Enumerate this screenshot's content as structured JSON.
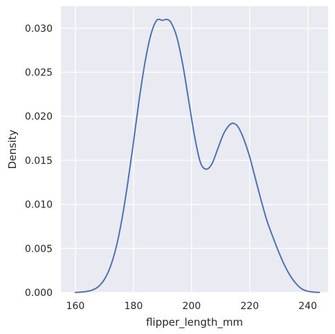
{
  "chart_data": {
    "type": "line",
    "xlabel": "flipper_length_mm",
    "ylabel": "Density",
    "xlim": [
      155,
      247
    ],
    "ylim": [
      0,
      0.0325
    ],
    "x_ticks": [
      160,
      180,
      200,
      220,
      240
    ],
    "y_ticks": [
      0.0,
      0.005,
      0.01,
      0.015,
      0.02,
      0.025,
      0.03
    ],
    "grid": true,
    "colors": {
      "background": "#EAEAF2",
      "grid": "#FFFFFF",
      "line": "#4C72B0"
    },
    "series": [
      {
        "x": [
          160,
          162,
          164,
          166,
          168,
          170,
          172,
          174,
          176,
          178,
          180,
          182,
          184,
          186,
          188,
          190,
          191.5,
          193,
          195,
          197,
          199,
          201,
          203,
          205,
          207,
          209,
          211,
          213,
          214.5,
          216,
          218,
          220,
          222,
          224,
          226,
          228,
          230,
          232,
          234,
          236,
          238,
          240,
          242,
          244
        ],
        "y": [
          1e-05,
          5e-05,
          0.00013,
          0.0003,
          0.0007,
          0.0015,
          0.0029,
          0.0051,
          0.0083,
          0.0124,
          0.0171,
          0.022,
          0.0262,
          0.0293,
          0.0309,
          0.0309,
          0.031,
          0.0306,
          0.0289,
          0.0258,
          0.0218,
          0.0178,
          0.0148,
          0.014,
          0.0146,
          0.0163,
          0.018,
          0.019,
          0.0192,
          0.0188,
          0.0174,
          0.0154,
          0.0129,
          0.0104,
          0.0081,
          0.0063,
          0.0046,
          0.0031,
          0.0019,
          0.001,
          0.0004,
          0.00015,
          5e-05,
          1e-05
        ]
      }
    ]
  }
}
